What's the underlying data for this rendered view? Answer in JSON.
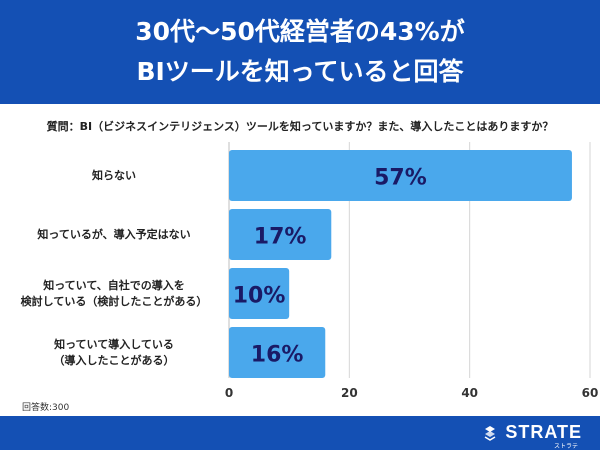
{
  "header": {
    "line1": "30代〜50代経営者の43%が",
    "line2": "BIツールを知っていると回答"
  },
  "question": "質問：BI（ビジネスインテリジェンス）ツールを知っていますか？また、導入したことはありますか？",
  "chart_data": {
    "type": "bar",
    "orientation": "horizontal",
    "title": "質問：BI（ビジネスインテリジェンス）ツールを知っていますか？また、導入したことはありますか？",
    "categories": [
      [
        "知らない"
      ],
      [
        "知っているが、導入予定はない"
      ],
      [
        "知っていて、自社での導入を",
        "検討している（検討したことがある）"
      ],
      [
        "知っていて導入している",
        "（導入したことがある）"
      ]
    ],
    "values": [
      57,
      17,
      10,
      16
    ],
    "value_labels": [
      "57%",
      "17%",
      "10%",
      "16%"
    ],
    "xlim": [
      0,
      60
    ],
    "xticks": [
      0,
      20,
      40,
      60
    ],
    "bar_color": "#4aa8ec",
    "label_color": "#1a1a66"
  },
  "footnote": "回答数:300",
  "brand": {
    "name": "STRATE",
    "sub": "ストラテ"
  }
}
